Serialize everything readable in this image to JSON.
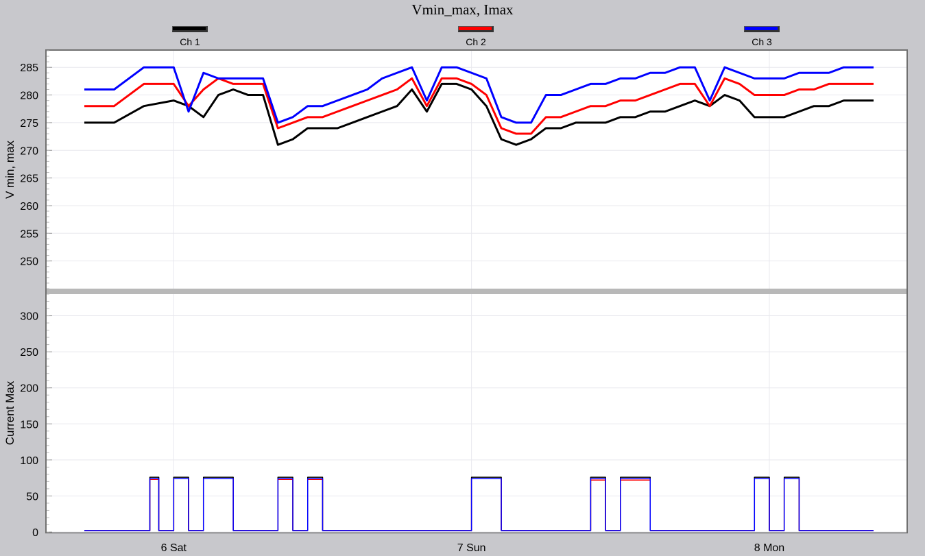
{
  "title": "Vmin_max, Imax",
  "legend": [
    {
      "label": "Ch 1",
      "color": "#000000"
    },
    {
      "label": "Ch 2",
      "color": "#ff0000"
    },
    {
      "label": "Ch 3",
      "color": "#0000ff"
    }
  ],
  "chart_data": [
    {
      "type": "line",
      "title": "Vmin_max, Imax",
      "ylabel": "V min, max",
      "ylim": [
        245,
        288
      ],
      "yticks": [
        250,
        255,
        260,
        265,
        270,
        275,
        280,
        285
      ],
      "grid": true,
      "series": [
        {
          "name": "Ch 1",
          "color": "#000000",
          "x": [
            0.0,
            0.1,
            0.2,
            0.3,
            0.35,
            0.4,
            0.45,
            0.5,
            0.55,
            0.6,
            0.65,
            0.7,
            0.75,
            0.8,
            0.85,
            0.9,
            0.95,
            1.0,
            1.05,
            1.1,
            1.15,
            1.2,
            1.25,
            1.3,
            1.35,
            1.4,
            1.45,
            1.5,
            1.55,
            1.6,
            1.65,
            1.7,
            1.75,
            1.8,
            1.85,
            1.9,
            1.95,
            2.0,
            2.05,
            2.1,
            2.15,
            2.2,
            2.25,
            2.3,
            2.35,
            2.4,
            2.45,
            2.5,
            2.55,
            2.6,
            2.65
          ],
          "y": [
            275,
            275,
            278,
            279,
            278,
            276,
            280,
            281,
            280,
            280,
            271,
            272,
            274,
            274,
            274,
            275,
            276,
            277,
            278,
            281,
            277,
            282,
            282,
            281,
            278,
            272,
            271,
            272,
            274,
            274,
            275,
            275,
            275,
            276,
            276,
            277,
            277,
            278,
            279,
            278,
            280,
            279,
            276,
            276,
            276,
            277,
            278,
            278,
            279,
            279,
            279
          ]
        },
        {
          "name": "Ch 2",
          "color": "#ff0000",
          "x": [
            0.0,
            0.1,
            0.2,
            0.3,
            0.35,
            0.4,
            0.45,
            0.5,
            0.55,
            0.6,
            0.65,
            0.7,
            0.75,
            0.8,
            0.85,
            0.9,
            0.95,
            1.0,
            1.05,
            1.1,
            1.15,
            1.2,
            1.25,
            1.3,
            1.35,
            1.4,
            1.45,
            1.5,
            1.55,
            1.6,
            1.65,
            1.7,
            1.75,
            1.8,
            1.85,
            1.9,
            1.95,
            2.0,
            2.05,
            2.1,
            2.15,
            2.2,
            2.25,
            2.3,
            2.35,
            2.4,
            2.45,
            2.5,
            2.55,
            2.6,
            2.65
          ],
          "y": [
            278,
            278,
            282,
            282,
            278,
            281,
            283,
            282,
            282,
            282,
            274,
            275,
            276,
            276,
            277,
            278,
            279,
            280,
            281,
            283,
            278,
            283,
            283,
            282,
            280,
            274,
            273,
            273,
            276,
            276,
            277,
            278,
            278,
            279,
            279,
            280,
            281,
            282,
            282,
            278,
            283,
            282,
            280,
            280,
            280,
            281,
            281,
            282,
            282,
            282,
            282
          ]
        },
        {
          "name": "Ch 3",
          "color": "#0000ff",
          "x": [
            0.0,
            0.1,
            0.2,
            0.3,
            0.35,
            0.4,
            0.45,
            0.5,
            0.55,
            0.6,
            0.65,
            0.7,
            0.75,
            0.8,
            0.85,
            0.9,
            0.95,
            1.0,
            1.05,
            1.1,
            1.15,
            1.2,
            1.25,
            1.3,
            1.35,
            1.4,
            1.45,
            1.5,
            1.55,
            1.6,
            1.65,
            1.7,
            1.75,
            1.8,
            1.85,
            1.9,
            1.95,
            2.0,
            2.05,
            2.1,
            2.15,
            2.2,
            2.25,
            2.3,
            2.35,
            2.4,
            2.45,
            2.5,
            2.55,
            2.6,
            2.65
          ],
          "y": [
            281,
            281,
            285,
            285,
            277,
            284,
            283,
            283,
            283,
            283,
            275,
            276,
            278,
            278,
            279,
            280,
            281,
            283,
            284,
            285,
            279,
            285,
            285,
            284,
            283,
            276,
            275,
            275,
            280,
            280,
            281,
            282,
            282,
            283,
            283,
            284,
            284,
            285,
            285,
            279,
            285,
            284,
            283,
            283,
            283,
            284,
            284,
            284,
            285,
            285,
            285
          ]
        }
      ]
    },
    {
      "type": "line",
      "ylabel": "Current Max",
      "ylim": [
        0,
        330
      ],
      "yticks": [
        0,
        50,
        100,
        150,
        200,
        250,
        300
      ],
      "xticks": [
        {
          "value": 0.3,
          "label": "6 Sat"
        },
        {
          "value": 1.3,
          "label": "7 Sun"
        },
        {
          "value": 2.3,
          "label": "8 Mon"
        }
      ],
      "grid": true,
      "series": [
        {
          "name": "Ch 1",
          "color": "#000000",
          "x": [
            0.0,
            0.2,
            0.22,
            0.25,
            0.3,
            0.35,
            0.4,
            0.5,
            0.6,
            0.65,
            0.7,
            0.75,
            0.8,
            1.0,
            1.2,
            1.3,
            1.35,
            1.4,
            1.5,
            1.6,
            1.7,
            1.75,
            1.8,
            1.9,
            2.0,
            2.1,
            2.2,
            2.25,
            2.3,
            2.35,
            2.4,
            2.5,
            2.6,
            2.65
          ],
          "y": [
            2,
            2,
            76,
            2,
            76,
            2,
            76,
            2,
            2,
            76,
            2,
            76,
            2,
            2,
            2,
            76,
            76,
            2,
            2,
            2,
            76,
            2,
            76,
            2,
            2,
            2,
            2,
            76,
            2,
            76,
            2,
            2,
            2,
            2
          ]
        },
        {
          "name": "Ch 2",
          "color": "#ff0000",
          "x": [
            0.0,
            0.2,
            0.22,
            0.25,
            0.3,
            0.35,
            0.4,
            0.5,
            0.6,
            0.65,
            0.7,
            0.75,
            0.8,
            1.0,
            1.2,
            1.3,
            1.35,
            1.4,
            1.5,
            1.6,
            1.7,
            1.75,
            1.8,
            1.9,
            2.0,
            2.1,
            2.2,
            2.25,
            2.3,
            2.35,
            2.4,
            2.5,
            2.6,
            2.65
          ],
          "y": [
            2,
            2,
            73,
            2,
            74,
            2,
            74,
            2,
            2,
            73,
            2,
            73,
            2,
            2,
            2,
            74,
            74,
            2,
            2,
            2,
            72,
            2,
            72,
            2,
            2,
            2,
            2,
            74,
            2,
            74,
            2,
            2,
            2,
            2
          ]
        },
        {
          "name": "Ch 3",
          "color": "#0000ff",
          "x": [
            0.0,
            0.2,
            0.22,
            0.25,
            0.3,
            0.35,
            0.4,
            0.5,
            0.6,
            0.65,
            0.7,
            0.75,
            0.8,
            1.0,
            1.2,
            1.3,
            1.35,
            1.4,
            1.5,
            1.6,
            1.7,
            1.75,
            1.8,
            1.9,
            2.0,
            2.1,
            2.2,
            2.25,
            2.3,
            2.35,
            2.4,
            2.5,
            2.6,
            2.65
          ],
          "y": [
            2,
            2,
            74,
            2,
            74,
            2,
            74,
            2,
            2,
            74,
            2,
            74,
            2,
            2,
            2,
            74,
            74,
            2,
            2,
            2,
            74,
            2,
            74,
            2,
            2,
            2,
            2,
            74,
            2,
            74,
            2,
            2,
            2,
            2
          ]
        }
      ]
    }
  ]
}
